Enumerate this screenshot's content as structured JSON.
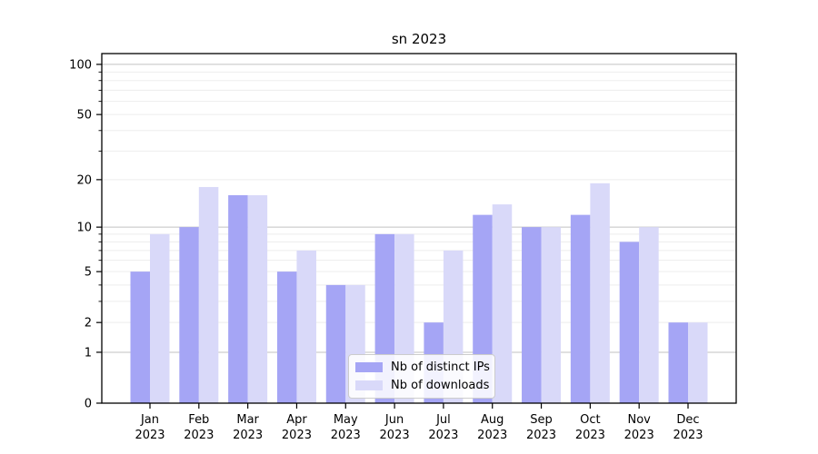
{
  "figure": {
    "background": "#ffffff"
  },
  "chart_data": {
    "type": "bar",
    "title": "sn 2023",
    "categories": [
      "Jan 2023",
      "Feb 2023",
      "Mar 2023",
      "Apr 2023",
      "May 2023",
      "Jun 2023",
      "Jul 2023",
      "Aug 2023",
      "Sep 2023",
      "Oct 2023",
      "Nov 2023",
      "Dec 2023"
    ],
    "x_tick_month": [
      "Jan",
      "Feb",
      "Mar",
      "Apr",
      "May",
      "Jun",
      "Jul",
      "Aug",
      "Sep",
      "Oct",
      "Nov",
      "Dec"
    ],
    "x_tick_year": "2023",
    "series": [
      {
        "name": "Nb of distinct IPs",
        "color": "#a5a5f5",
        "values": [
          5,
          10,
          16,
          5,
          4,
          9,
          2,
          12,
          10,
          12,
          8,
          2
        ]
      },
      {
        "name": "Nb of downloads",
        "color": "#d9d9f9",
        "values": [
          9,
          18,
          16,
          7,
          4,
          9,
          7,
          14,
          10,
          19,
          10,
          2
        ]
      }
    ],
    "yscale": "log1p",
    "ylim": [
      0,
      116
    ],
    "yticks": [
      0,
      1,
      2,
      5,
      10,
      20,
      50,
      100
    ],
    "minor_yticks": [
      3,
      4,
      6,
      7,
      8,
      9,
      30,
      40,
      60,
      70,
      80,
      90
    ],
    "major_gridline_values": [
      1,
      10,
      100
    ],
    "minor_gridline_values": [
      2,
      3,
      4,
      5,
      6,
      7,
      8,
      9,
      20,
      30,
      40,
      50,
      60,
      70,
      80,
      90
    ],
    "grid": "both",
    "legend_position": "lower center",
    "colors": {
      "major_grid": "#c2c2c2",
      "minor_grid": "#ededed",
      "axis": "#000000",
      "tick_label": "#000000"
    }
  }
}
